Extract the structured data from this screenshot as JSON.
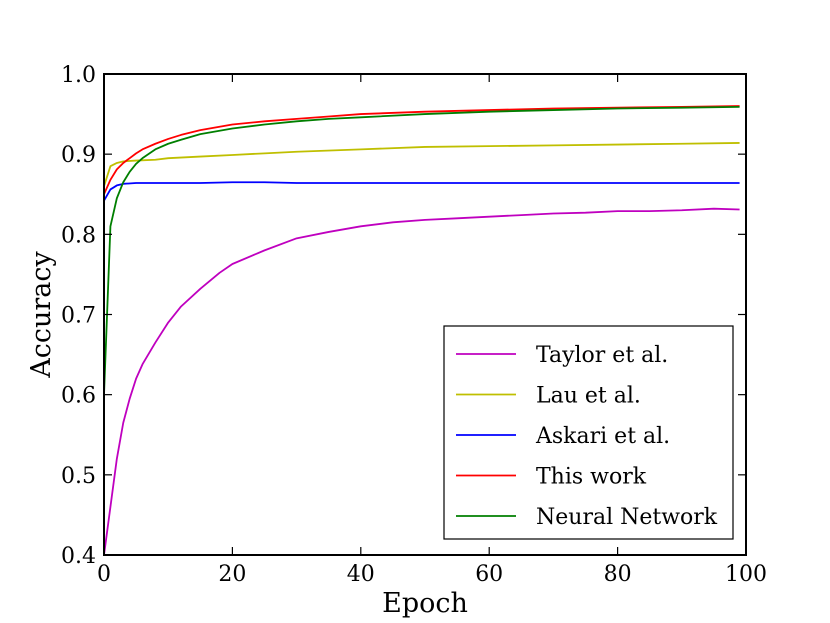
{
  "chart_data": {
    "type": "line",
    "title": "",
    "xlabel": "Epoch",
    "ylabel": "Accuracy",
    "xlim": [
      0,
      100
    ],
    "ylim": [
      0.4,
      1.0
    ],
    "x_ticks": [
      0,
      20,
      40,
      60,
      80,
      100
    ],
    "x_tick_labels": [
      "0",
      "20",
      "40",
      "60",
      "80",
      "100"
    ],
    "y_ticks": [
      0.4,
      0.5,
      0.6,
      0.7,
      0.8,
      0.9,
      1.0
    ],
    "y_tick_labels": [
      "0.4",
      "0.5",
      "0.6",
      "0.7",
      "0.8",
      "0.9",
      "1.0"
    ],
    "grid": false,
    "legend_position": "lower-right",
    "series": [
      {
        "name": "Taylor et al.",
        "color": "#bf00bf",
        "x": [
          0,
          1,
          2,
          3,
          4,
          5,
          6,
          8,
          10,
          12,
          15,
          18,
          20,
          25,
          30,
          35,
          40,
          45,
          50,
          55,
          60,
          65,
          70,
          75,
          80,
          85,
          90,
          95,
          99
        ],
        "y": [
          0.4,
          0.46,
          0.52,
          0.565,
          0.595,
          0.62,
          0.638,
          0.665,
          0.69,
          0.71,
          0.732,
          0.752,
          0.763,
          0.78,
          0.795,
          0.803,
          0.81,
          0.815,
          0.818,
          0.82,
          0.822,
          0.824,
          0.826,
          0.827,
          0.829,
          0.829,
          0.83,
          0.832,
          0.831
        ]
      },
      {
        "name": "Lau et al.",
        "color": "#bfbf00",
        "x": [
          0,
          1,
          2,
          3,
          5,
          8,
          10,
          15,
          20,
          25,
          30,
          40,
          50,
          60,
          70,
          80,
          90,
          99
        ],
        "y": [
          0.86,
          0.885,
          0.889,
          0.891,
          0.892,
          0.893,
          0.895,
          0.897,
          0.899,
          0.901,
          0.903,
          0.906,
          0.909,
          0.91,
          0.911,
          0.912,
          0.913,
          0.914
        ]
      },
      {
        "name": "Askari et al.",
        "color": "#0000ff",
        "x": [
          0,
          1,
          2,
          3,
          5,
          8,
          10,
          15,
          20,
          25,
          30,
          40,
          50,
          60,
          70,
          80,
          90,
          99
        ],
        "y": [
          0.842,
          0.856,
          0.861,
          0.863,
          0.864,
          0.864,
          0.864,
          0.864,
          0.865,
          0.865,
          0.864,
          0.864,
          0.864,
          0.864,
          0.864,
          0.864,
          0.864,
          0.864
        ]
      },
      {
        "name": "This work",
        "color": "#ff0000",
        "x": [
          0,
          1,
          2,
          3,
          4,
          5,
          6,
          8,
          10,
          12,
          15,
          20,
          25,
          30,
          35,
          40,
          50,
          60,
          70,
          80,
          90,
          99
        ],
        "y": [
          0.85,
          0.868,
          0.881,
          0.889,
          0.895,
          0.901,
          0.906,
          0.913,
          0.919,
          0.924,
          0.93,
          0.937,
          0.941,
          0.944,
          0.947,
          0.95,
          0.953,
          0.955,
          0.957,
          0.958,
          0.959,
          0.96
        ]
      },
      {
        "name": "Neural Network",
        "color": "#007f00",
        "x": [
          0,
          1,
          2,
          3,
          4,
          5,
          6,
          8,
          10,
          12,
          15,
          20,
          25,
          30,
          35,
          40,
          50,
          60,
          70,
          80,
          90,
          99
        ],
        "y": [
          0.6,
          0.81,
          0.845,
          0.865,
          0.878,
          0.888,
          0.895,
          0.906,
          0.913,
          0.918,
          0.925,
          0.932,
          0.937,
          0.941,
          0.944,
          0.946,
          0.95,
          0.953,
          0.955,
          0.957,
          0.958,
          0.959
        ]
      }
    ]
  }
}
